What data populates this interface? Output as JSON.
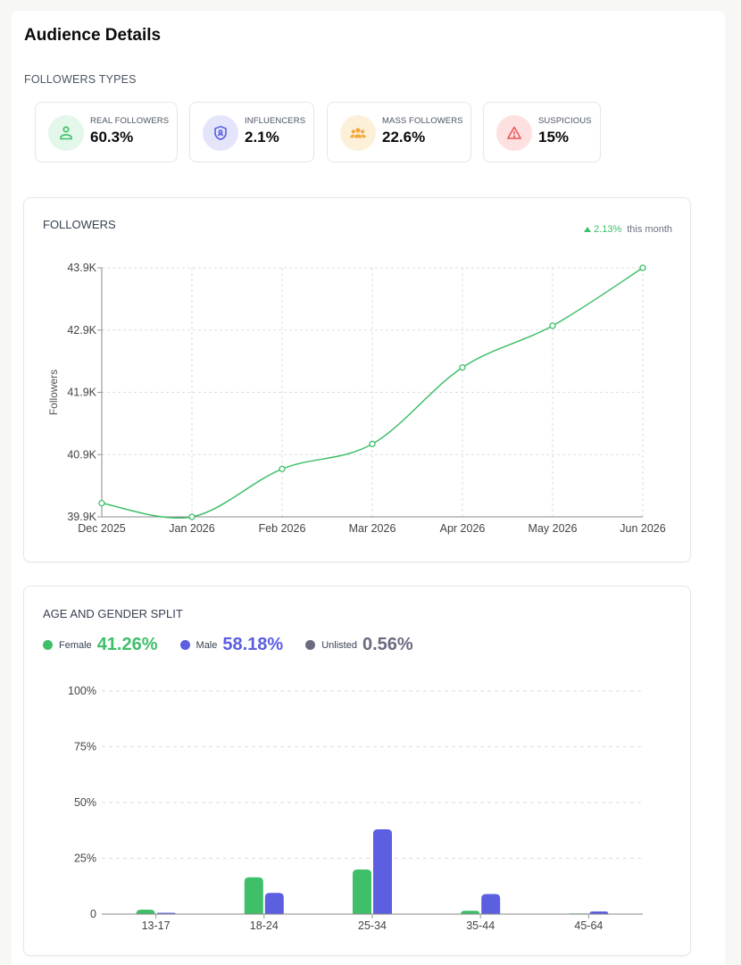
{
  "page": {
    "title": "Audience Details"
  },
  "followers_types": {
    "label": "FOLLOWERS TYPES",
    "cards": [
      {
        "label": "REAL FOLLOWERS",
        "value": "60.3%",
        "icon": "users-icon",
        "color": "#3fbf6a",
        "bg": "#e3f7ea"
      },
      {
        "label": "INFLUENCERS",
        "value": "2.1%",
        "icon": "shield-user-icon",
        "color": "#5b5fe0",
        "bg": "#e4e5fb"
      },
      {
        "label": "MASS FOLLOWERS",
        "value": "22.6%",
        "icon": "group-icon",
        "color": "#f2a73b",
        "bg": "#fdf0d9"
      },
      {
        "label": "SUSPICIOUS",
        "value": "15%",
        "icon": "warning-icon",
        "color": "#ea5455",
        "bg": "#fde0e0"
      }
    ]
  },
  "followers_chart": {
    "label": "FOLLOWERS",
    "trend_value": "2.13%",
    "trend_suffix": "this month",
    "chart_data": {
      "type": "line",
      "x": [
        "Dec 2025",
        "Jan 2026",
        "Feb 2026",
        "Mar 2026",
        "Apr 2026",
        "May 2026",
        "Jun 2026"
      ],
      "series": [
        {
          "values": [
            40.12,
            39.9,
            40.67,
            41.07,
            42.3,
            42.97,
            43.9
          ]
        }
      ],
      "ylabel": "Followers",
      "ylim": [
        39.9,
        43.9
      ],
      "yticks": [
        "39.9K",
        "40.9K",
        "41.9K",
        "42.9K",
        "43.9K"
      ],
      "grid": true,
      "color": "#3fbf6a"
    }
  },
  "age_gender": {
    "label": "AGE AND GENDER SPLIT",
    "legend": [
      {
        "name": "Female",
        "value": "41.26%",
        "color": "#3fbf6a"
      },
      {
        "name": "Male",
        "value": "58.18%",
        "color": "#5b5fe0"
      },
      {
        "name": "Unlisted",
        "value": "0.56%",
        "color": "#6b6b80"
      }
    ],
    "chart_data": {
      "type": "bar",
      "categories": [
        "13-17",
        "18-24",
        "25-34",
        "35-44",
        "45-64"
      ],
      "series": [
        {
          "name": "Female",
          "values": [
            2,
            16.5,
            20,
            1.5,
            0.3
          ],
          "color": "#3fbf6a"
        },
        {
          "name": "Male",
          "values": [
            0.6,
            9.5,
            38,
            9,
            1.2
          ],
          "color": "#5b5fe0"
        }
      ],
      "ylim": [
        0,
        100
      ],
      "yticks": [
        "0",
        "25%",
        "50%",
        "75%",
        "100%"
      ],
      "grid": true
    }
  }
}
